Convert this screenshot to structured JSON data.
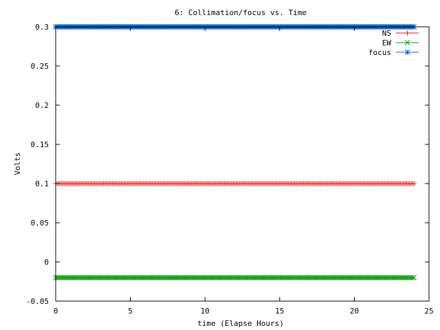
{
  "chart_data": {
    "type": "line",
    "title": "6: Collimation/focus vs. Time",
    "xlabel": "time (Elapse Hours)",
    "ylabel": "Volts",
    "xlim": [
      0,
      25
    ],
    "ylim": [
      -0.05,
      0.3
    ],
    "xticks": [
      0,
      5,
      10,
      15,
      20,
      25
    ],
    "yticks": [
      -0.05,
      0,
      0.05,
      0.1,
      0.15,
      0.2,
      0.25,
      0.3
    ],
    "ytick_labels": [
      "-0.05",
      "0",
      "0.05",
      "0.1",
      "0.15",
      "0.2",
      "0.25",
      "0.3"
    ],
    "x_range": [
      0,
      24
    ],
    "sample_interval_hours": 0.1,
    "grid": false,
    "legend_position": "top-right",
    "series": [
      {
        "name": "NS",
        "marker": "plus",
        "color": "#ff0000",
        "value": 0.1
      },
      {
        "name": "EW",
        "marker": "cross",
        "color": "#00a000",
        "value": -0.02
      },
      {
        "name": "focus",
        "marker": "star",
        "color": "#0060d0",
        "value": 0.3
      }
    ]
  }
}
